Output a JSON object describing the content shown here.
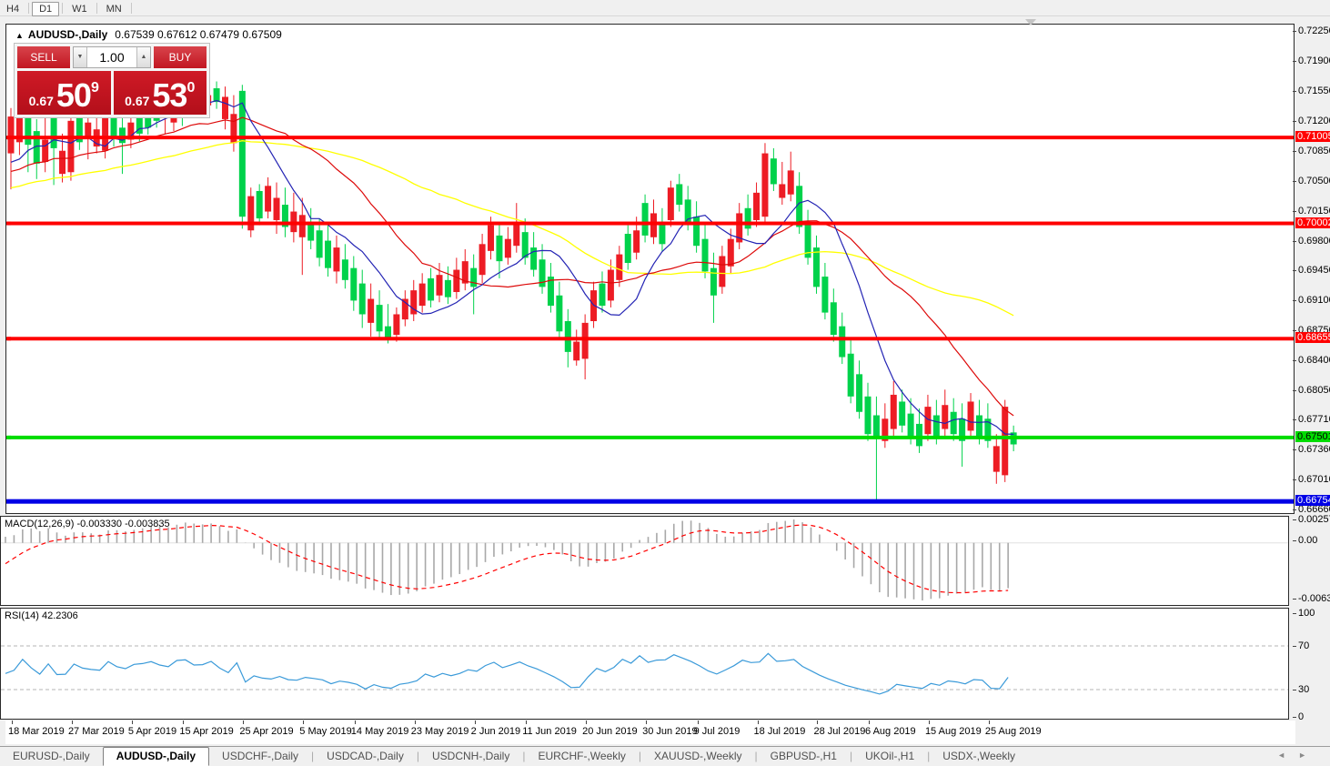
{
  "toolbar": {
    "timeframes": [
      {
        "label": "H4",
        "active": false
      },
      {
        "label": "D1",
        "active": true
      },
      {
        "label": "W1",
        "active": false
      },
      {
        "label": "MN",
        "active": false
      }
    ]
  },
  "chart": {
    "collapse_arrow": "▲",
    "symbol_title": "AUDUSD-,Daily",
    "ohlc_text": "0.67539 0.67612 0.67479 0.67509",
    "trade_panel": {
      "sell_label": "SELL",
      "buy_label": "BUY",
      "volume": "1.00",
      "vol_down_icon": "▼",
      "vol_up_icon": "▲",
      "sell_price": {
        "prefix": "0.67",
        "big": "50",
        "sup": "9"
      },
      "buy_price": {
        "prefix": "0.67",
        "big": "53",
        "sup": "0"
      }
    },
    "colors": {
      "up_candle": "#ed1c24",
      "down_candle": "#00d24b",
      "note": "green=body of falling gap days per screenshot",
      "ma_fast": "#2424b4",
      "ma_mid": "#dd0a0a",
      "ma_slow": "#ffff00",
      "hline_red": "#ff0000",
      "hline_green": "#00dc00",
      "hline_blue": "#0000e6",
      "macd_bar": "#a8a8a8",
      "macd_signal": "#ff0000",
      "rsi_line": "#3a9ad9"
    },
    "price_axis_ticks": [
      0.7225,
      0.719,
      0.7155,
      0.712,
      0.7085,
      0.705,
      0.7015,
      0.698,
      0.6945,
      0.691,
      0.6875,
      0.684,
      0.6805,
      0.6771,
      0.6736,
      0.6701,
      0.6666
    ],
    "hlines": [
      {
        "price": 0.71005,
        "label": "0.71005",
        "color": "#ff0000",
        "text": "#ffffff",
        "thick": 4
      },
      {
        "price": 0.70002,
        "label": "0.70002",
        "color": "#ff0000",
        "text": "#ffffff",
        "thick": 4
      },
      {
        "price": 0.68655,
        "label": "0.68655",
        "color": "#ff0000",
        "text": "#ffffff",
        "thick": 4
      },
      {
        "price": 0.67501,
        "label": "0.67501",
        "color": "#00dc00",
        "text": "#000000",
        "thick": 4
      },
      {
        "price": 0.66754,
        "label": "0.66754",
        "color": "#0000e6",
        "text": "#ffffff",
        "thick": 5
      }
    ],
    "x_labels": [
      {
        "idx": 0,
        "text": "18 Mar 2019"
      },
      {
        "idx": 7,
        "text": "27 Mar 2019"
      },
      {
        "idx": 14,
        "text": "5 Apr 2019"
      },
      {
        "idx": 20,
        "text": "15 Apr 2019"
      },
      {
        "idx": 27,
        "text": "25 Apr 2019"
      },
      {
        "idx": 34,
        "text": "5 May 2019"
      },
      {
        "idx": 40,
        "text": "14 May 2019"
      },
      {
        "idx": 47,
        "text": "23 May 2019"
      },
      {
        "idx": 54,
        "text": "2 Jun 2019"
      },
      {
        "idx": 60,
        "text": "11 Jun 2019"
      },
      {
        "idx": 67,
        "text": "20 Jun 2019"
      },
      {
        "idx": 74,
        "text": "30 Jun 2019"
      },
      {
        "idx": 80,
        "text": "9 Jul 2019"
      },
      {
        "idx": 87,
        "text": "18 Jul 2019"
      },
      {
        "idx": 94,
        "text": "28 Jul 2019"
      },
      {
        "idx": 100,
        "text": "6 Aug 2019"
      },
      {
        "idx": 107,
        "text": "15 Aug 2019"
      },
      {
        "idx": 114,
        "text": "25 Aug 2019"
      }
    ],
    "candles": [
      [
        0.7135,
        0.7125,
        0.7082,
        0.704,
        "r"
      ],
      [
        0.7162,
        0.7152,
        0.7095,
        0.708,
        "r"
      ],
      [
        0.7158,
        0.7148,
        0.7092,
        0.706,
        "g"
      ],
      [
        0.7122,
        0.7108,
        0.707,
        0.7052,
        "g"
      ],
      [
        0.7125,
        0.7098,
        0.7072,
        0.706,
        "r"
      ],
      [
        0.7142,
        0.713,
        0.7088,
        0.7045,
        "g"
      ],
      [
        0.7105,
        0.7085,
        0.7058,
        0.7048,
        "r"
      ],
      [
        0.7132,
        0.712,
        0.706,
        0.705,
        "r"
      ],
      [
        0.7136,
        0.7128,
        0.7095,
        0.7086,
        "g"
      ],
      [
        0.7128,
        0.7118,
        0.71,
        0.7075,
        "r"
      ],
      [
        0.7124,
        0.711,
        0.709,
        0.7082,
        "r"
      ],
      [
        0.7152,
        0.714,
        0.7085,
        0.7076,
        "r"
      ],
      [
        0.7156,
        0.7146,
        0.71,
        0.709,
        "g"
      ],
      [
        0.7126,
        0.7112,
        0.7094,
        0.7058,
        "g"
      ],
      [
        0.7136,
        0.7118,
        0.7098,
        0.7088,
        "r"
      ],
      [
        0.7142,
        0.7128,
        0.7105,
        0.7096,
        "g"
      ],
      [
        0.715,
        0.7134,
        0.7112,
        0.7104,
        "g"
      ],
      [
        0.7158,
        0.7148,
        0.712,
        0.7112,
        "g"
      ],
      [
        0.7164,
        0.7152,
        0.7128,
        0.7104,
        "r"
      ],
      [
        0.7156,
        0.7138,
        0.7118,
        0.7108,
        "r"
      ],
      [
        0.717,
        0.716,
        0.7124,
        0.7114,
        "g"
      ],
      [
        0.7174,
        0.7164,
        0.7146,
        0.7136,
        "g"
      ],
      [
        0.717,
        0.7156,
        0.7136,
        0.7128,
        "r"
      ],
      [
        0.7162,
        0.715,
        0.7138,
        0.7124,
        "r"
      ],
      [
        0.7166,
        0.7158,
        0.7142,
        0.7134,
        "g"
      ],
      [
        0.716,
        0.7148,
        0.7122,
        0.711,
        "r"
      ],
      [
        0.715,
        0.7128,
        0.7094,
        0.7084,
        "r"
      ],
      [
        0.7162,
        0.7155,
        0.7008,
        0.6994,
        "g"
      ],
      [
        0.7042,
        0.7032,
        0.6992,
        0.6984,
        "r"
      ],
      [
        0.7046,
        0.7038,
        0.7006,
        0.6998,
        "g"
      ],
      [
        0.7054,
        0.7044,
        0.7014,
        0.7006,
        "r"
      ],
      [
        0.7048,
        0.703,
        0.7004,
        0.6988,
        "r"
      ],
      [
        0.7042,
        0.7022,
        0.6996,
        0.6984,
        "g"
      ],
      [
        0.7036,
        0.7014,
        0.699,
        0.6978,
        "r"
      ],
      [
        0.703,
        0.701,
        0.6984,
        0.694,
        "r"
      ],
      [
        0.7018,
        0.7002,
        0.698,
        0.697,
        "g"
      ],
      [
        0.7006,
        0.6992,
        0.696,
        0.695,
        "g"
      ],
      [
        0.6998,
        0.698,
        0.6948,
        0.6938,
        "g"
      ],
      [
        0.6986,
        0.6972,
        0.6944,
        0.693,
        "r"
      ],
      [
        0.6976,
        0.6958,
        0.6934,
        0.6924,
        "g"
      ],
      [
        0.6962,
        0.6948,
        0.691,
        0.6898,
        "g"
      ],
      [
        0.6946,
        0.693,
        0.6894,
        0.6878,
        "g"
      ],
      [
        0.693,
        0.6912,
        0.6884,
        0.6868,
        "r"
      ],
      [
        0.6922,
        0.6905,
        0.6874,
        0.6864,
        "g"
      ],
      [
        0.6906,
        0.688,
        0.6866,
        0.686,
        "g"
      ],
      [
        0.6902,
        0.6894,
        0.687,
        0.6862,
        "r"
      ],
      [
        0.6922,
        0.6912,
        0.6888,
        0.688,
        "r"
      ],
      [
        0.6934,
        0.6922,
        0.6894,
        0.6886,
        "r"
      ],
      [
        0.6942,
        0.693,
        0.6904,
        0.6896,
        "r"
      ],
      [
        0.6948,
        0.6936,
        0.691,
        0.6902,
        "g"
      ],
      [
        0.6954,
        0.694,
        0.6916,
        0.6908,
        "r"
      ],
      [
        0.695,
        0.6934,
        0.6914,
        0.6906,
        "g"
      ],
      [
        0.696,
        0.6946,
        0.692,
        0.6912,
        "r"
      ],
      [
        0.697,
        0.6956,
        0.693,
        0.6922,
        "r"
      ],
      [
        0.6964,
        0.6948,
        0.6926,
        0.6894,
        "g"
      ],
      [
        0.6988,
        0.6976,
        0.694,
        0.693,
        "r"
      ],
      [
        0.7008,
        0.6998,
        0.6968,
        0.6958,
        "r"
      ],
      [
        0.7,
        0.6986,
        0.6956,
        0.6936,
        "g"
      ],
      [
        0.6996,
        0.6982,
        0.696,
        0.6952,
        "r"
      ],
      [
        0.7024,
        0.7,
        0.6974,
        0.6966,
        "r"
      ],
      [
        0.7006,
        0.699,
        0.696,
        0.6952,
        "g"
      ],
      [
        0.699,
        0.6972,
        0.6946,
        0.6938,
        "g"
      ],
      [
        0.6976,
        0.6958,
        0.6926,
        0.6918,
        "g"
      ],
      [
        0.6954,
        0.6938,
        0.6904,
        0.6896,
        "g"
      ],
      [
        0.6932,
        0.6916,
        0.6874,
        0.6864,
        "g"
      ],
      [
        0.69,
        0.6886,
        0.685,
        0.6832,
        "g"
      ],
      [
        0.6876,
        0.6862,
        0.684,
        0.6834,
        "r"
      ],
      [
        0.6894,
        0.6884,
        0.6842,
        0.6818,
        "r"
      ],
      [
        0.6932,
        0.6922,
        0.6886,
        0.6878,
        "r"
      ],
      [
        0.6944,
        0.693,
        0.6904,
        0.6896,
        "g"
      ],
      [
        0.6958,
        0.6946,
        0.691,
        0.6902,
        "r"
      ],
      [
        0.6974,
        0.6964,
        0.6934,
        0.6926,
        "r"
      ],
      [
        0.6998,
        0.6988,
        0.6954,
        0.6946,
        "g"
      ],
      [
        0.7008,
        0.6992,
        0.6966,
        0.6958,
        "r"
      ],
      [
        0.7034,
        0.7024,
        0.6986,
        0.6978,
        "g"
      ],
      [
        0.7028,
        0.7012,
        0.6984,
        0.6976,
        "r"
      ],
      [
        0.7018,
        0.7002,
        0.6976,
        0.6968,
        "g"
      ],
      [
        0.705,
        0.7042,
        0.7004,
        0.6996,
        "r"
      ],
      [
        0.7058,
        0.7046,
        0.7022,
        0.7014,
        "g"
      ],
      [
        0.7044,
        0.7028,
        0.7,
        0.6992,
        "g"
      ],
      [
        0.7026,
        0.7008,
        0.6974,
        0.6966,
        "g"
      ],
      [
        0.7,
        0.6982,
        0.6944,
        0.6936,
        "g"
      ],
      [
        0.6966,
        0.6948,
        0.6916,
        0.6884,
        "g"
      ],
      [
        0.6974,
        0.6962,
        0.6926,
        0.6918,
        "r"
      ],
      [
        0.6994,
        0.6982,
        0.695,
        0.6942,
        "r"
      ],
      [
        0.7024,
        0.7012,
        0.6978,
        0.697,
        "r"
      ],
      [
        0.7034,
        0.7018,
        0.6994,
        0.6986,
        "g"
      ],
      [
        0.7048,
        0.7036,
        0.7004,
        0.6996,
        "r"
      ],
      [
        0.7094,
        0.7082,
        0.7008,
        0.7,
        "r"
      ],
      [
        0.7088,
        0.7076,
        0.7046,
        0.7038,
        "g"
      ],
      [
        0.7072,
        0.7046,
        0.703,
        0.7022,
        "r"
      ],
      [
        0.7084,
        0.7062,
        0.7034,
        0.7026,
        "r"
      ],
      [
        0.706,
        0.7044,
        0.6996,
        0.6988,
        "g"
      ],
      [
        0.7016,
        0.7002,
        0.696,
        0.6952,
        "g"
      ],
      [
        0.6986,
        0.6972,
        0.6926,
        0.6918,
        "g"
      ],
      [
        0.6954,
        0.6938,
        0.6896,
        0.6888,
        "g"
      ],
      [
        0.6924,
        0.6908,
        0.687,
        0.6862,
        "g"
      ],
      [
        0.6896,
        0.688,
        0.6844,
        0.6836,
        "g"
      ],
      [
        0.6864,
        0.6848,
        0.6798,
        0.679,
        "g"
      ],
      [
        0.684,
        0.6824,
        0.678,
        0.6772,
        "g"
      ],
      [
        0.6814,
        0.6798,
        0.6754,
        0.6746,
        "g"
      ],
      [
        0.6798,
        0.6776,
        0.675,
        0.6677,
        "g"
      ],
      [
        0.679,
        0.6772,
        0.6746,
        0.6738,
        "r"
      ],
      [
        0.6816,
        0.68,
        0.676,
        0.6752,
        "r"
      ],
      [
        0.6806,
        0.6792,
        0.6764,
        0.6756,
        "g"
      ],
      [
        0.6796,
        0.6778,
        0.675,
        0.6742,
        "g"
      ],
      [
        0.6784,
        0.6766,
        0.674,
        0.6732,
        "g"
      ],
      [
        0.68,
        0.6786,
        0.6754,
        0.6746,
        "r"
      ],
      [
        0.6794,
        0.6776,
        0.675,
        0.6742,
        "g"
      ],
      [
        0.6806,
        0.6788,
        0.676,
        0.6752,
        "r"
      ],
      [
        0.6796,
        0.678,
        0.6754,
        0.6746,
        "g"
      ],
      [
        0.679,
        0.6772,
        0.6746,
        0.6716,
        "g"
      ],
      [
        0.6802,
        0.6792,
        0.6758,
        0.675,
        "r"
      ],
      [
        0.6794,
        0.6776,
        0.675,
        0.6742,
        "g"
      ],
      [
        0.679,
        0.6772,
        0.6746,
        0.6738,
        "g"
      ],
      [
        0.6754,
        0.674,
        0.671,
        0.6696,
        "r"
      ],
      [
        0.6794,
        0.6786,
        0.6706,
        0.6698,
        "r"
      ],
      [
        0.6764,
        0.6756,
        0.6742,
        0.6734,
        "g"
      ]
    ]
  },
  "macd": {
    "header": "MACD(12,26,9) -0.003330 -0.003835",
    "axis_max": "0.002574",
    "axis_zero": "0.00",
    "axis_min": "-0.006326"
  },
  "rsi": {
    "header": "RSI(14) 42.2306",
    "axis": [
      "100",
      "70",
      "30",
      "0"
    ],
    "levels": [
      70,
      30
    ]
  },
  "tabs": {
    "items": [
      {
        "label": "EURUSD-,Daily",
        "active": false
      },
      {
        "label": "AUDUSD-,Daily",
        "active": true
      },
      {
        "label": "USDCHF-,Daily",
        "active": false
      },
      {
        "label": "USDCAD-,Daily",
        "active": false
      },
      {
        "label": "USDCNH-,Daily",
        "active": false
      },
      {
        "label": "EURCHF-,Weekly",
        "active": false
      },
      {
        "label": "XAUUSD-,Weekly",
        "active": false
      },
      {
        "label": "GBPUSD-,H1",
        "active": false
      },
      {
        "label": "UKOil-,H1",
        "active": false
      },
      {
        "label": "USDX-,Weekly",
        "active": false
      }
    ],
    "scroll_left_icon": "◄",
    "scroll_right_icon": "►"
  }
}
